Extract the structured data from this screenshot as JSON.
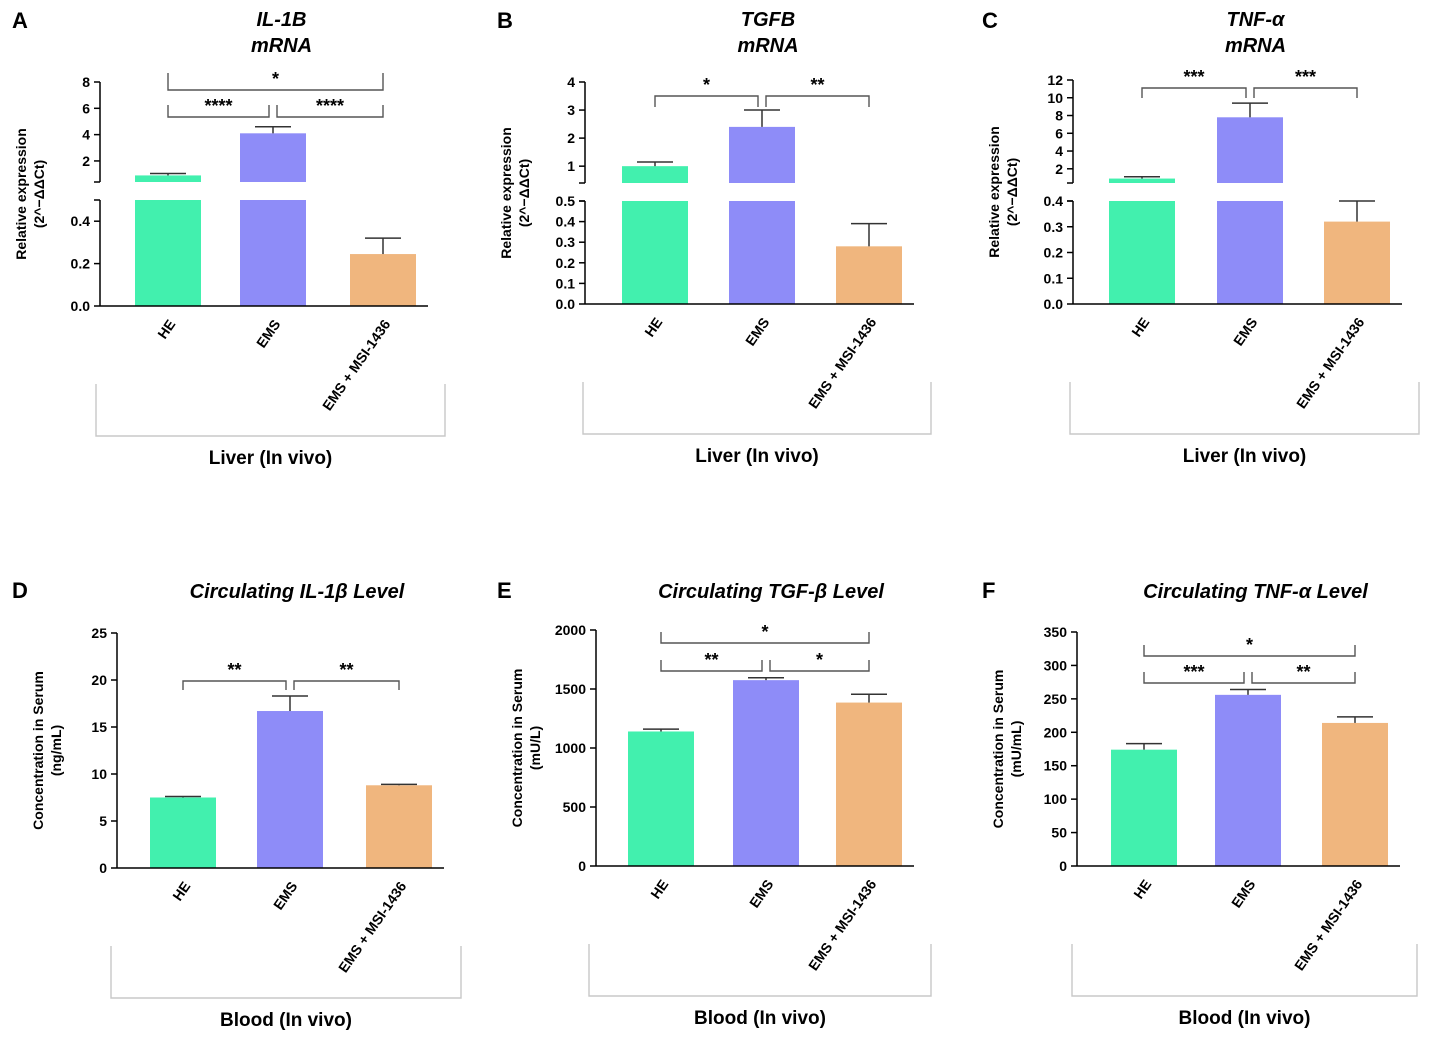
{
  "colors": {
    "HE": "#42f0ae",
    "EMS": "#8e8cf8",
    "EMS + MSI-1436": "#f0b67e",
    "axis": "#000000",
    "bracket": "#555555",
    "group_box": "#c8c8c8"
  },
  "chart_data": [
    {
      "type": "bar",
      "panel_letter": "A",
      "title": [
        "IL-1B",
        "mRNA"
      ],
      "ylabel": [
        "Relative expression",
        "(2^−ΔΔCt)"
      ],
      "categories": [
        "HE",
        "EMS",
        "EMS + MSI-1436"
      ],
      "values": [
        0.9,
        4.1,
        0.245
      ],
      "errors": [
        0.15,
        0.5,
        0.075
      ],
      "axis": "broken",
      "lower_range": [
        0,
        0.5
      ],
      "lower_ticks": [
        "0.0",
        "0.2",
        "0.4"
      ],
      "upper_range": [
        0.4,
        8
      ],
      "upper_ticks": [
        "2",
        "4",
        "6",
        "8"
      ],
      "significance": [
        {
          "from": 0,
          "to": 2,
          "label": "*"
        },
        {
          "from": 0,
          "to": 1,
          "label": "****"
        },
        {
          "from": 1,
          "to": 2,
          "label": "****"
        }
      ],
      "group_label": "Liver (In vivo)"
    },
    {
      "type": "bar",
      "panel_letter": "B",
      "title": [
        "TGFB",
        "mRNA"
      ],
      "ylabel": [
        "Relative expression",
        "(2^−ΔΔCt)"
      ],
      "categories": [
        "HE",
        "EMS",
        "EMS + MSI-1436"
      ],
      "values": [
        1.0,
        2.4,
        0.28
      ],
      "errors": [
        0.15,
        0.6,
        0.11
      ],
      "axis": "broken",
      "lower_range": [
        0,
        0.5
      ],
      "lower_ticks": [
        "0.0",
        "0.1",
        "0.2",
        "0.3",
        "0.4",
        "0.5"
      ],
      "upper_range": [
        0.4,
        4
      ],
      "upper_ticks": [
        "1",
        "2",
        "3",
        "4"
      ],
      "significance": [
        {
          "from": 0,
          "to": 1,
          "label": "*"
        },
        {
          "from": 1,
          "to": 2,
          "label": "**"
        }
      ],
      "group_label": "Liver (In vivo)"
    },
    {
      "type": "bar",
      "panel_letter": "C",
      "title": [
        "TNF-α",
        "mRNA"
      ],
      "ylabel": [
        "Relative expression",
        "(2^−ΔΔCt)"
      ],
      "categories": [
        "HE",
        "EMS",
        "EMS + MSI-1436"
      ],
      "values": [
        0.9,
        7.8,
        0.32
      ],
      "errors": [
        0.2,
        1.6,
        0.08
      ],
      "axis": "broken",
      "lower_range": [
        0,
        0.4
      ],
      "lower_ticks": [
        "0.0",
        "0.1",
        "0.2",
        "0.3",
        "0.4"
      ],
      "upper_range": [
        0.4,
        12
      ],
      "upper_ticks": [
        "2",
        "4",
        "6",
        "8",
        "10",
        "12"
      ],
      "significance": [
        {
          "from": 0,
          "to": 1,
          "label": "***"
        },
        {
          "from": 1,
          "to": 2,
          "label": "***"
        }
      ],
      "group_label": "Liver (In vivo)"
    },
    {
      "type": "bar",
      "panel_letter": "D",
      "title": [
        "Circulating IL-1β Level"
      ],
      "ylabel": [
        "Concentration in Serum",
        "(ng/mL)"
      ],
      "categories": [
        "HE",
        "EMS",
        "EMS + MSI-1436"
      ],
      "values": [
        7.5,
        16.7,
        8.8
      ],
      "errors": [
        0.1,
        1.6,
        0.1
      ],
      "axis": "linear",
      "range": [
        0,
        25
      ],
      "ticks": [
        "0",
        "5",
        "10",
        "15",
        "20",
        "25"
      ],
      "significance": [
        {
          "from": 0,
          "to": 1,
          "label": "**"
        },
        {
          "from": 1,
          "to": 2,
          "label": "**"
        }
      ],
      "group_label": "Blood (In vivo)"
    },
    {
      "type": "bar",
      "panel_letter": "E",
      "title": [
        "Circulating TGF-β Level"
      ],
      "ylabel": [
        "Concentration in Serum",
        "(mU/L)"
      ],
      "categories": [
        "HE",
        "EMS",
        "EMS + MSI-1436"
      ],
      "values": [
        1140,
        1575,
        1385
      ],
      "errors": [
        20,
        20,
        70
      ],
      "axis": "linear",
      "range": [
        0,
        2000
      ],
      "ticks": [
        "0",
        "500",
        "1000",
        "1500",
        "2000"
      ],
      "significance": [
        {
          "from": 0,
          "to": 2,
          "label": "*"
        },
        {
          "from": 0,
          "to": 1,
          "label": "**"
        },
        {
          "from": 1,
          "to": 2,
          "label": "*"
        }
      ],
      "group_label": "Blood (In vivo)"
    },
    {
      "type": "bar",
      "panel_letter": "F",
      "title": [
        "Circulating TNF-α Level"
      ],
      "ylabel": [
        "Concentration in Serum",
        "(mU/mL)"
      ],
      "categories": [
        "HE",
        "EMS",
        "EMS + MSI-1436"
      ],
      "values": [
        174,
        256,
        214
      ],
      "errors": [
        9,
        8,
        9
      ],
      "axis": "linear",
      "range": [
        0,
        350
      ],
      "ticks": [
        "0",
        "50",
        "100",
        "150",
        "200",
        "250",
        "300",
        "350"
      ],
      "significance": [
        {
          "from": 0,
          "to": 2,
          "label": "*"
        },
        {
          "from": 0,
          "to": 1,
          "label": "***"
        },
        {
          "from": 1,
          "to": 2,
          "label": "**"
        }
      ],
      "group_label": "Blood (In vivo)"
    }
  ]
}
